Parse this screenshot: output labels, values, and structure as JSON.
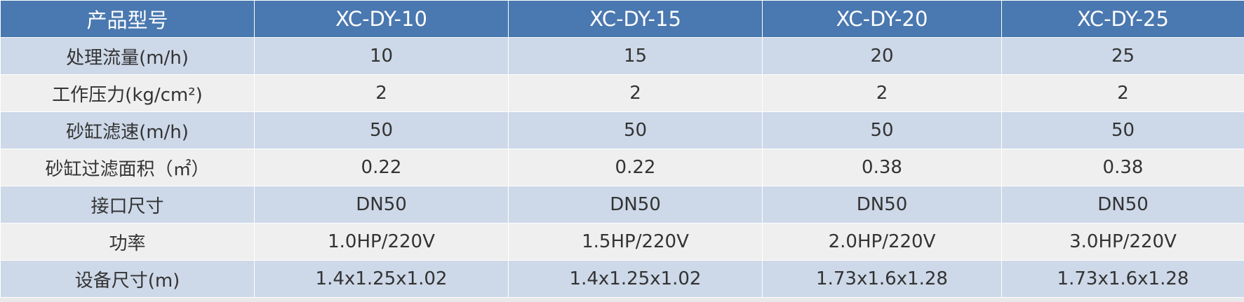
{
  "table": {
    "header": [
      "产品型号",
      "XC-DY-10",
      "XC-DY-15",
      "XC-DY-20",
      "XC-DY-25"
    ],
    "rows": [
      [
        "处理流量(m/h)",
        "10",
        "15",
        "20",
        "25"
      ],
      [
        "工作压力(kg/cm²)",
        "2",
        "2",
        "2",
        "2"
      ],
      [
        "砂缸滤速(m/h)",
        "50",
        "50",
        "50",
        "50"
      ],
      [
        "砂缸过滤面积（㎡）",
        "0.22",
        "0.22",
        "0.38",
        "0.38"
      ],
      [
        "接口尺寸",
        "DN50",
        "DN50",
        "DN50",
        "DN50"
      ],
      [
        "功率",
        "1.0HP/220V",
        "1.5HP/220V",
        "2.0HP/220V",
        "3.0HP/220V"
      ],
      [
        "设备尺寸(m)",
        "1.4x1.25x1.02",
        "1.4x1.25x1.02",
        "1.73x1.6x1.28",
        "1.73x1.6x1.28"
      ]
    ]
  }
}
